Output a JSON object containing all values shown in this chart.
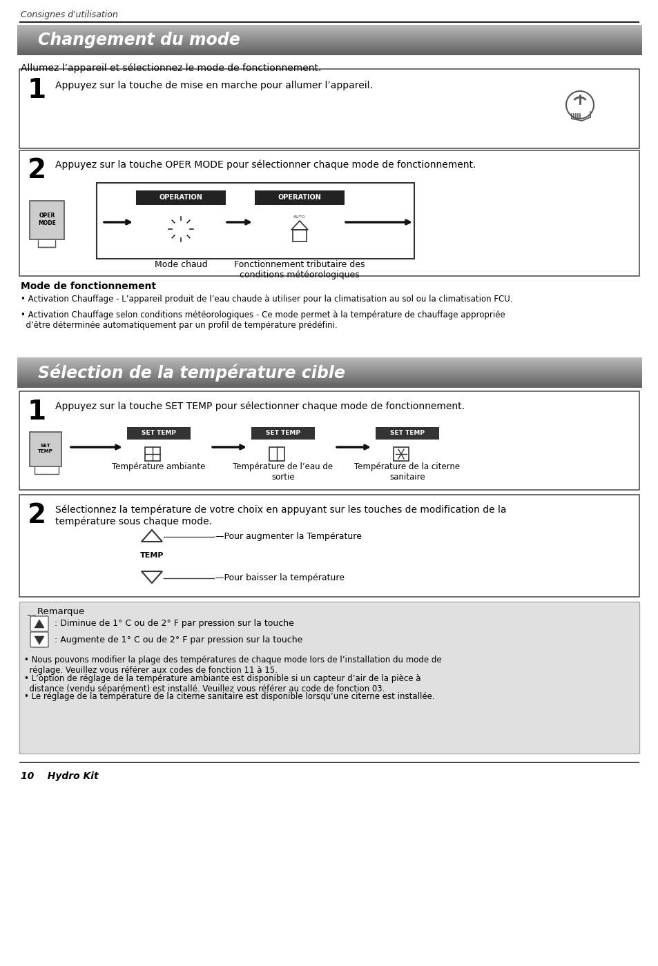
{
  "page_bg": "#ffffff",
  "header_italic": "Consignes d'utilisation",
  "section1_title": "Changement du mode",
  "section1_subtitle": "Allumez l’appareil et sélectionnez le mode de fonctionnement.",
  "step1_text": "Appuyez sur la touche de mise en marche pour allumer l’appareil.",
  "step2_text": "Appuyez sur la touche OPER MODE pour sélectionner chaque mode de fonctionnement.",
  "mode_chaud": "Mode chaud",
  "fonctionnement_trib": "Fonctionnement tributaire des\nconditions météorologiques",
  "operation_label": "OPERATION",
  "mode_fonctionnement_title": "Mode de fonctionnement",
  "bullet1": "• Activation Chauffage - L’appareil produit de l’eau chaude à utiliser pour la climatisation au sol ou la climatisation FCU.",
  "bullet2": "• Activation Chauffage selon conditions météorologiques - Ce mode permet à la température de chauffage appropriée\n  d’être déterminée automatiquement par un profil de température prédéfini.",
  "section2_title": "Sélection de la température cible",
  "step1b_text": "Appuyez sur la touche SET TEMP pour sélectionner chaque mode de fonctionnement.",
  "set_temp_label": "SET TEMP",
  "temp_ambiante": "Température ambiante",
  "temp_eau_sortie": "Température de l’eau de\nsortie",
  "temp_citerne": "Température de la citerne\nsanitaire",
  "step2b_text": "Sélectionnez la température de votre choix en appuyant sur les touches de modification de la\ntempérature sous chaque mode.",
  "pour_augmenter": "—Pour augmenter la Température",
  "pour_baisser": "—Pour baisser la température",
  "temp_label": "TEMP",
  "remarque_title": "‿ Remarque",
  "remarque1": " : Diminue de 1° C ou de 2° F par pression sur la touche",
  "remarque2": " : Augmente de 1° C ou de 2° F par pression sur la touche",
  "note1": "• Nous pouvons modifier la plage des températures de chaque mode lors de l’installation du mode de\n  réglage. Veuillez vous référer aux codes de fonction 11 à 15.",
  "note2": "• L’option de réglage de la température ambiante est disponible si un capteur d’air de la pièce à\n  distance (vendu séparément) est installé. Veuillez vous référer au code de fonction 03.",
  "note3": "• Le réglage de la température de la citerne sanitaire est disponible lorsqu’une citerne est installée.",
  "footer": "10    Hydro Kit"
}
